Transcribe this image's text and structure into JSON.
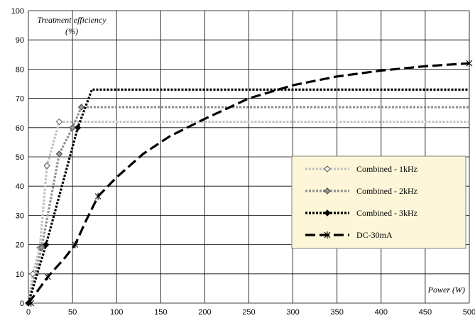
{
  "chart_data": {
    "type": "line",
    "title": "",
    "xlabel": "Power (W)",
    "ylabel_line1": "Treatment efficiency",
    "ylabel_line2": "(%)",
    "xlim": [
      0,
      500
    ],
    "ylim": [
      0,
      100
    ],
    "xticks": [
      0,
      50,
      100,
      150,
      200,
      250,
      300,
      350,
      400,
      450,
      500
    ],
    "yticks": [
      0,
      10,
      20,
      30,
      40,
      50,
      60,
      70,
      80,
      90,
      100
    ],
    "grid": true,
    "legend_position": "right-middle",
    "legend_background": "#fdf6d8",
    "series": [
      {
        "name": "Combined - 1kHz",
        "color": "#c0c0c0",
        "dash": "dotted",
        "marker": "open-diamond",
        "points": [
          [
            0,
            0
          ],
          [
            5,
            10
          ],
          [
            13,
            19
          ],
          [
            21,
            47
          ],
          [
            35,
            62
          ],
          [
            500,
            62
          ]
        ],
        "markers": [
          [
            0,
            0
          ],
          [
            5,
            10
          ],
          [
            13,
            19
          ],
          [
            21,
            47
          ],
          [
            35,
            62
          ]
        ]
      },
      {
        "name": "Combined - 2kHz",
        "color": "#909090",
        "dash": "dotted",
        "marker": "filled-diamond",
        "points": [
          [
            0,
            0
          ],
          [
            15,
            19
          ],
          [
            35,
            51
          ],
          [
            50,
            60
          ],
          [
            60,
            67
          ],
          [
            500,
            67
          ]
        ],
        "markers": [
          [
            0,
            0
          ],
          [
            15,
            19
          ],
          [
            35,
            51
          ],
          [
            50,
            60
          ],
          [
            60,
            67
          ]
        ]
      },
      {
        "name": "Combined - 3kHz",
        "color": "#000000",
        "dash": "dotted",
        "marker": "filled-diamond-black",
        "points": [
          [
            0,
            0
          ],
          [
            20,
            20
          ],
          [
            56,
            60
          ],
          [
            72,
            73
          ],
          [
            500,
            73
          ]
        ],
        "markers": [
          [
            0,
            0
          ],
          [
            20,
            20
          ],
          [
            56,
            60
          ]
        ]
      },
      {
        "name": "DC-30mA",
        "color": "#000000",
        "dash": "dashed",
        "marker": "asterisk",
        "points": [
          [
            0,
            0
          ],
          [
            10,
            4
          ],
          [
            22,
            9
          ],
          [
            40,
            15
          ],
          [
            53,
            20
          ],
          [
            65,
            28
          ],
          [
            79,
            36.5
          ],
          [
            100,
            43
          ],
          [
            130,
            51
          ],
          [
            160,
            57
          ],
          [
            200,
            63
          ],
          [
            250,
            70
          ],
          [
            300,
            74.5
          ],
          [
            350,
            77.5
          ],
          [
            400,
            79.5
          ],
          [
            450,
            81
          ],
          [
            500,
            82
          ]
        ],
        "markers": [
          [
            3,
            0
          ],
          [
            22,
            9
          ],
          [
            53,
            20
          ],
          [
            79,
            36.5
          ],
          [
            500,
            82
          ]
        ]
      }
    ]
  }
}
